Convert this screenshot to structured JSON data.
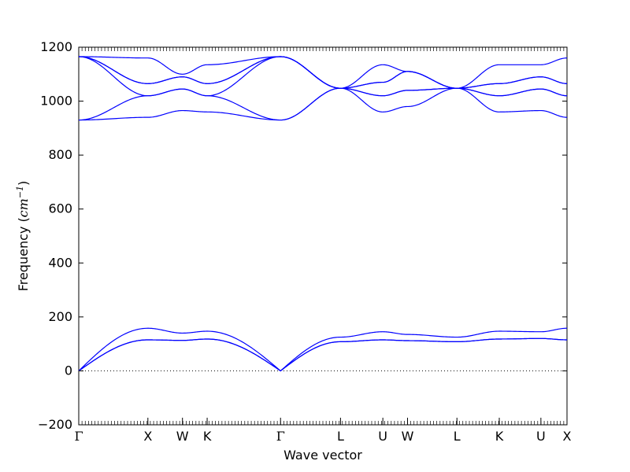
{
  "chart_data": {
    "type": "line",
    "title": "",
    "xlabel": "Wave vector",
    "ylabel": "Frequency (cm⁻¹)",
    "ylabel_prefix": "Frequency (",
    "ylabel_unit": "cm",
    "ylabel_sup": "−1",
    "ylabel_suffix": ")",
    "ylim": [
      -200,
      1200
    ],
    "yticks": [
      -200,
      0,
      200,
      400,
      600,
      800,
      1000,
      1200
    ],
    "xlim": [
      0,
      6.92
    ],
    "grid": false,
    "legend": "none",
    "line_color": "#0000ff",
    "zero_line": {
      "y": 0,
      "style": "dotted",
      "color": "#000000"
    },
    "high_symmetry_points": [
      {
        "label": "Γ",
        "x": 0.0
      },
      {
        "label": "X",
        "x": 0.98
      },
      {
        "label": "W",
        "x": 1.47
      },
      {
        "label": "K",
        "x": 1.82
      },
      {
        "label": "Γ",
        "x": 2.86
      },
      {
        "label": "L",
        "x": 3.71
      },
      {
        "label": "U",
        "x": 4.31
      },
      {
        "label": "W",
        "x": 4.66
      },
      {
        "label": "L",
        "x": 5.36
      },
      {
        "label": "K",
        "x": 5.96
      },
      {
        "label": "U",
        "x": 6.55
      },
      {
        "label": "X",
        "x": 6.92
      }
    ],
    "band_values_at_points": {
      "acoustic_1": [
        0,
        115,
        113,
        118,
        0,
        108,
        115,
        112,
        108,
        118,
        120,
        115
      ],
      "acoustic_2": [
        0,
        115,
        113,
        118,
        0,
        108,
        115,
        112,
        108,
        118,
        120,
        115
      ],
      "longitudinal_acoustic": [
        0,
        158,
        140,
        147,
        0,
        125,
        145,
        135,
        125,
        147,
        145,
        158
      ],
      "optic_1": [
        930,
        940,
        965,
        960,
        930,
        1048,
        960,
        980,
        1048,
        960,
        965,
        940
      ],
      "optic_2": [
        930,
        1020,
        1045,
        1020,
        930,
        1048,
        1020,
        1040,
        1048,
        1020,
        1045,
        1020
      ],
      "optic_3": [
        1165,
        1020,
        1045,
        1020,
        1165,
        1048,
        1020,
        1040,
        1048,
        1020,
        1045,
        1020
      ],
      "optic_4": [
        1165,
        1065,
        1090,
        1065,
        1165,
        1048,
        1070,
        1110,
        1048,
        1065,
        1090,
        1065
      ],
      "optic_5": [
        1165,
        1065,
        1090,
        1065,
        1165,
        1048,
        1070,
        1110,
        1048,
        1065,
        1090,
        1065
      ],
      "optic_6": [
        1165,
        1160,
        1100,
        1135,
        1165,
        1048,
        1135,
        1110,
        1048,
        1135,
        1135,
        1160
      ]
    }
  }
}
